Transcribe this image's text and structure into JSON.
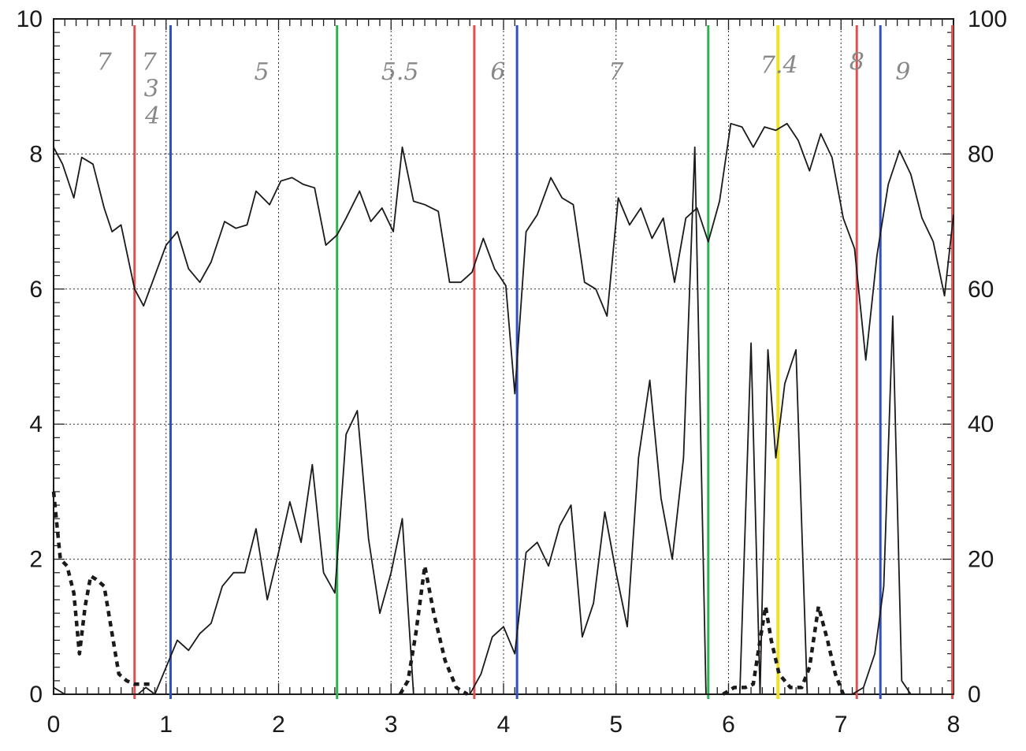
{
  "chart_data": {
    "type": "line",
    "title": "",
    "xlabel": "",
    "ylabel": "",
    "xlim": [
      0,
      8
    ],
    "ylim_left": [
      0,
      10
    ],
    "ylim_right": [
      0,
      100
    ],
    "x_ticks": [
      "0",
      "1",
      "2",
      "3",
      "4",
      "5",
      "6",
      "7",
      "8"
    ],
    "y_left_ticks": [
      "0",
      "2",
      "4",
      "6",
      "8",
      "10"
    ],
    "y_right_ticks": [
      "0",
      "20",
      "40",
      "60",
      "80",
      "100"
    ],
    "grid": true,
    "series": [
      {
        "axis": "left",
        "style": "solid",
        "color": "#1a1a1a",
        "x": [
          0,
          0.08,
          0.18,
          0.25,
          0.35,
          0.45,
          0.52,
          0.6,
          0.72,
          0.8,
          0.9,
          1.0,
          1.1,
          1.2,
          1.3,
          1.4,
          1.52,
          1.62,
          1.72,
          1.8,
          1.92,
          2.02,
          2.12,
          2.22,
          2.32,
          2.42,
          2.52,
          2.6,
          2.72,
          2.82,
          2.92,
          3.02,
          3.1,
          3.2,
          3.3,
          3.42,
          3.52,
          3.62,
          3.72,
          3.82,
          3.92,
          4.02,
          4.1,
          4.2,
          4.3,
          4.42,
          4.52,
          4.62,
          4.72,
          4.82,
          4.92,
          5.02,
          5.12,
          5.22,
          5.32,
          5.42,
          5.52,
          5.62,
          5.72,
          5.82,
          5.92,
          6.02,
          6.12,
          6.22,
          6.32,
          6.42,
          6.52,
          6.62,
          6.72,
          6.82,
          6.92,
          7.02,
          7.12,
          7.22,
          7.32,
          7.42,
          7.52,
          7.62,
          7.72,
          7.82,
          7.92,
          8.0
        ],
        "y": [
          8.1,
          7.85,
          7.35,
          7.95,
          7.85,
          7.2,
          6.85,
          6.95,
          6.0,
          5.75,
          6.2,
          6.65,
          6.85,
          6.3,
          6.1,
          6.4,
          7.0,
          6.9,
          6.95,
          7.45,
          7.25,
          7.6,
          7.65,
          7.55,
          7.5,
          6.65,
          6.8,
          7.05,
          7.45,
          7.0,
          7.2,
          6.85,
          8.1,
          7.3,
          7.25,
          7.15,
          6.1,
          6.1,
          6.25,
          6.75,
          6.3,
          6.05,
          4.45,
          6.85,
          7.1,
          7.65,
          7.35,
          7.25,
          6.1,
          6.0,
          5.6,
          7.35,
          6.95,
          7.2,
          6.75,
          7.05,
          6.1,
          7.05,
          7.2,
          6.7,
          7.3,
          8.45,
          8.4,
          8.1,
          8.4,
          8.35,
          8.45,
          8.2,
          7.75,
          8.3,
          7.95,
          7.05,
          6.6,
          4.95,
          6.5,
          7.55,
          8.05,
          7.7,
          7.05,
          6.7,
          5.9,
          7.1
        ]
      },
      {
        "axis": "right",
        "style": "solid",
        "color": "#1a1a1a",
        "x": [
          0,
          0.1,
          0.2,
          0.3,
          0.4,
          0.5,
          0.6,
          0.7,
          0.75,
          0.82,
          0.9,
          1.0,
          1.1,
          1.2,
          1.3,
          1.4,
          1.5,
          1.6,
          1.7,
          1.8,
          1.9,
          2.0,
          2.1,
          2.2,
          2.3,
          2.4,
          2.5,
          2.6,
          2.7,
          2.8,
          2.9,
          3.0,
          3.1,
          3.2,
          3.3,
          3.4,
          3.5,
          3.6,
          3.7,
          3.8,
          3.9,
          4.0,
          4.1,
          4.2,
          4.3,
          4.4,
          4.5,
          4.6,
          4.7,
          4.8,
          4.9,
          5.0,
          5.1,
          5.2,
          5.3,
          5.4,
          5.5,
          5.6,
          5.7,
          5.8,
          5.9,
          6.0,
          6.1,
          6.2,
          6.28,
          6.35,
          6.42,
          6.5,
          6.6,
          6.7,
          6.8,
          6.9,
          7.0,
          7.1,
          7.2,
          7.3,
          7.38,
          7.46,
          7.54,
          7.62,
          8.0
        ],
        "y": [
          1,
          0,
          0,
          0,
          0,
          0,
          0,
          0,
          0,
          1,
          0,
          4,
          8,
          6.5,
          9,
          10.5,
          16,
          18,
          18,
          24.5,
          14,
          21,
          28.5,
          22.5,
          34,
          18,
          15,
          38.5,
          42,
          23,
          12,
          18,
          26,
          0,
          0,
          0,
          0,
          0,
          0,
          3,
          8.5,
          10,
          6,
          21,
          22.5,
          19,
          25,
          28,
          8.5,
          13.5,
          27,
          18,
          10,
          35,
          46.5,
          29,
          20,
          35,
          81,
          0,
          0,
          0,
          0,
          52,
          0,
          51,
          35,
          46,
          51,
          0,
          0,
          0,
          0,
          0,
          1,
          6,
          16,
          56,
          2,
          0,
          0
        ]
      },
      {
        "axis": "right",
        "style": "dotted",
        "color": "#1a1a1a",
        "x": [
          0,
          0.06,
          0.12,
          0.18,
          0.23,
          0.28,
          0.33,
          0.38,
          0.45,
          0.52,
          0.58,
          0.65,
          0.72,
          0.8,
          0.86
        ],
        "y": [
          30,
          20,
          19,
          15,
          6,
          13,
          17.5,
          17,
          16,
          9,
          3,
          2,
          1.5,
          1.5,
          1.5
        ]
      },
      {
        "axis": "right",
        "style": "dotted",
        "color": "#1a1a1a",
        "x": [
          3.08,
          3.15,
          3.22,
          3.3,
          3.38,
          3.48,
          3.58,
          3.68
        ],
        "y": [
          0,
          2,
          9,
          19,
          12,
          5,
          1,
          0
        ]
      },
      {
        "axis": "right",
        "style": "dotted",
        "color": "#1a1a1a",
        "x": [
          5.95,
          6.05,
          6.15,
          6.22,
          6.28,
          6.33,
          6.38,
          6.45,
          6.55,
          6.65,
          6.72,
          6.8,
          6.88,
          6.95,
          7.02
        ],
        "y": [
          0,
          1,
          1,
          1.5,
          8,
          13,
          8,
          3,
          1,
          1,
          4,
          13,
          8,
          3,
          0
        ]
      }
    ],
    "vertical_markers": [
      {
        "x": 0.72,
        "color": "#e05050"
      },
      {
        "x": 1.04,
        "color": "#3050c0"
      },
      {
        "x": 2.52,
        "color": "#30b050"
      },
      {
        "x": 3.74,
        "color": "#e05050"
      },
      {
        "x": 4.12,
        "color": "#3050c0"
      },
      {
        "x": 5.82,
        "color": "#30b050"
      },
      {
        "x": 6.44,
        "color": "#f0e020"
      },
      {
        "x": 7.14,
        "color": "#e05050"
      },
      {
        "x": 7.35,
        "color": "#3050c0"
      },
      {
        "x": 7.99,
        "color": "#e05050"
      }
    ],
    "annotations": [
      {
        "x": 0.45,
        "y": 9.25,
        "text": "7"
      },
      {
        "x": 0.85,
        "y": 9.25,
        "text": "7"
      },
      {
        "x": 0.87,
        "y": 8.85,
        "text": "3"
      },
      {
        "x": 0.88,
        "y": 8.45,
        "text": "4"
      },
      {
        "x": 1.85,
        "y": 9.1,
        "text": "5"
      },
      {
        "x": 3.08,
        "y": 9.1,
        "text": "5.5"
      },
      {
        "x": 3.95,
        "y": 9.1,
        "text": "6"
      },
      {
        "x": 5.0,
        "y": 9.1,
        "text": "7"
      },
      {
        "x": 6.45,
        "y": 9.2,
        "text": "7.4"
      },
      {
        "x": 7.14,
        "y": 9.25,
        "text": "8"
      },
      {
        "x": 7.55,
        "y": 9.1,
        "text": "9"
      }
    ]
  }
}
